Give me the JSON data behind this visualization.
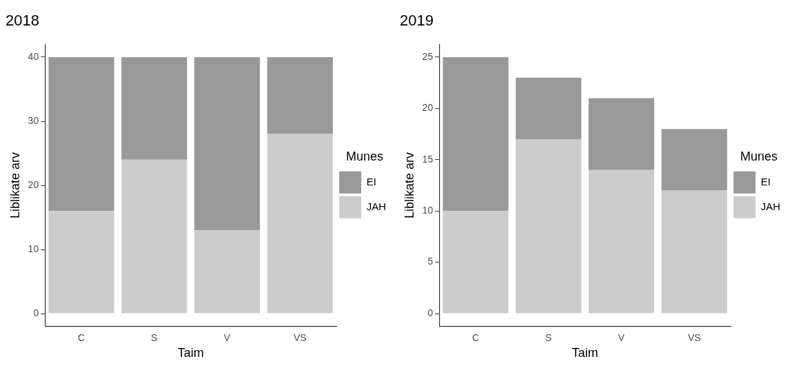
{
  "chart_data": [
    {
      "type": "bar",
      "title": "2018",
      "xlabel": "Taim",
      "ylabel": "Liblikate arv",
      "legend_title": "Munes",
      "categories": [
        "C",
        "S",
        "V",
        "VS"
      ],
      "stacked": true,
      "legend": "right",
      "grid": false,
      "ylim": [
        -2,
        42
      ],
      "yticks": [
        0,
        10,
        20,
        30,
        40
      ],
      "series": [
        {
          "name": "JAH",
          "color": "#cccccc",
          "values": [
            16,
            24,
            13,
            28
          ]
        },
        {
          "name": "EI",
          "color": "#999999",
          "values": [
            24,
            16,
            27,
            12
          ]
        }
      ]
    },
    {
      "type": "bar",
      "title": "2019",
      "xlabel": "Taim",
      "ylabel": "Liblikate arv",
      "legend_title": "Munes",
      "categories": [
        "C",
        "S",
        "V",
        "VS"
      ],
      "stacked": true,
      "legend": "right",
      "grid": false,
      "ylim": [
        -1.25,
        26.25
      ],
      "yticks": [
        0,
        5,
        10,
        15,
        20,
        25
      ],
      "series": [
        {
          "name": "JAH",
          "color": "#cccccc",
          "values": [
            10,
            17,
            14,
            12
          ]
        },
        {
          "name": "EI",
          "color": "#999999",
          "values": [
            15,
            6,
            7,
            6
          ]
        }
      ]
    }
  ]
}
